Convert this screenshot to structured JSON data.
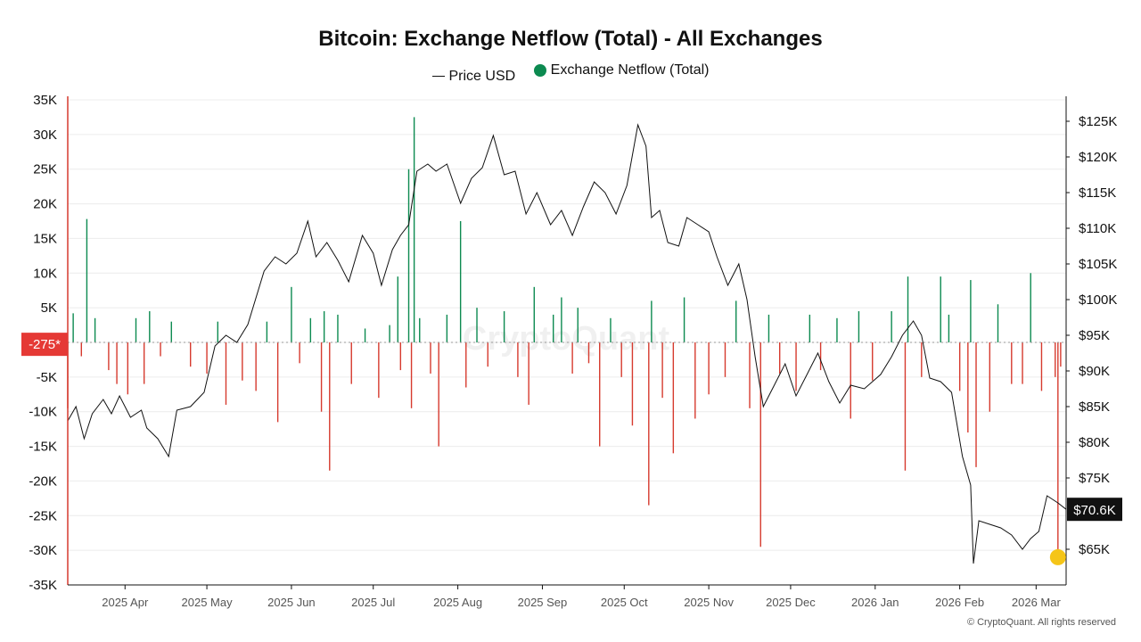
{
  "chart_data": {
    "type": "bar+line",
    "title": "Bitcoin: Exchange Netflow (Total) - All Exchanges",
    "legend": [
      {
        "name": "Price USD",
        "kind": "line",
        "color": "#111111"
      },
      {
        "name": "Exchange Netflow (Total)",
        "kind": "dot",
        "color": "#0c8a50"
      }
    ],
    "colors": {
      "inflow": "#0c8a50",
      "outflow": "#d63a2e",
      "price": "#111111",
      "marker": "#f5c518",
      "last_label_bg": "#e53935"
    },
    "left_axis": {
      "ylim": [
        -35000,
        35000
      ],
      "ticks": [
        35000,
        30000,
        25000,
        20000,
        15000,
        10000,
        5000,
        0,
        -5000,
        -10000,
        -15000,
        -20000,
        -25000,
        -30000,
        -35000
      ],
      "tick_labels": [
        "35K",
        "30K",
        "25K",
        "20K",
        "15K",
        "10K",
        "5K",
        "",
        "-5K",
        "-10K",
        "-15K",
        "-20K",
        "-25K",
        "-30K",
        "-35K"
      ]
    },
    "right_axis": {
      "ylim": [
        60000,
        128000
      ],
      "ticks": [
        125000,
        120000,
        115000,
        110000,
        105000,
        100000,
        95000,
        90000,
        85000,
        80000,
        75000,
        65000
      ],
      "tick_labels": [
        "$125K",
        "$120K",
        "$115K",
        "$110K",
        "$105K",
        "$100K",
        "$95K",
        "$90K",
        "$85K",
        "$80K",
        "$75K",
        "$65K"
      ]
    },
    "x_axis": {
      "start": "2025-03-11",
      "end": "2026-03-12",
      "ticks": [
        "2025-04-01",
        "2025-05-01",
        "2025-06-01",
        "2025-07-01",
        "2025-08-01",
        "2025-09-01",
        "2025-10-01",
        "2025-11-01",
        "2025-12-01",
        "2026-01-01",
        "2026-02-01",
        "2026-03-01"
      ],
      "tick_labels": [
        "2025 Apr",
        "2025 May",
        "2025 Jun",
        "2025 Jul",
        "2025 Aug",
        "2025 Sep",
        "2025 Oct",
        "2025 Nov",
        "2025 Dec",
        "2026 Jan",
        "2026 Feb",
        "2026 Mar"
      ]
    },
    "netflow_series": [
      {
        "date": "2025-03-11",
        "value": -9500
      },
      {
        "date": "2025-03-13",
        "value": 4200
      },
      {
        "date": "2025-03-16",
        "value": -2000
      },
      {
        "date": "2025-03-18",
        "value": 17800
      },
      {
        "date": "2025-03-21",
        "value": 3500
      },
      {
        "date": "2025-03-26",
        "value": -4000
      },
      {
        "date": "2025-03-29",
        "value": -6000
      },
      {
        "date": "2025-04-02",
        "value": -7500
      },
      {
        "date": "2025-04-05",
        "value": 3500
      },
      {
        "date": "2025-04-08",
        "value": -6000
      },
      {
        "date": "2025-04-10",
        "value": 4500
      },
      {
        "date": "2025-04-14",
        "value": -2000
      },
      {
        "date": "2025-04-18",
        "value": 3000
      },
      {
        "date": "2025-04-25",
        "value": -3500
      },
      {
        "date": "2025-05-01",
        "value": -4500
      },
      {
        "date": "2025-05-05",
        "value": 3000
      },
      {
        "date": "2025-05-08",
        "value": -9000
      },
      {
        "date": "2025-05-14",
        "value": -5500
      },
      {
        "date": "2025-05-19",
        "value": -7000
      },
      {
        "date": "2025-05-23",
        "value": 3000
      },
      {
        "date": "2025-05-27",
        "value": -11500
      },
      {
        "date": "2025-06-01",
        "value": 8000
      },
      {
        "date": "2025-06-04",
        "value": -3000
      },
      {
        "date": "2025-06-08",
        "value": 3500
      },
      {
        "date": "2025-06-12",
        "value": -10000
      },
      {
        "date": "2025-06-13",
        "value": 4500
      },
      {
        "date": "2025-06-15",
        "value": -18500
      },
      {
        "date": "2025-06-18",
        "value": 4000
      },
      {
        "date": "2025-06-23",
        "value": -6000
      },
      {
        "date": "2025-06-28",
        "value": 2000
      },
      {
        "date": "2025-07-03",
        "value": -8000
      },
      {
        "date": "2025-07-07",
        "value": 2500
      },
      {
        "date": "2025-07-10",
        "value": 9500
      },
      {
        "date": "2025-07-11",
        "value": -4000
      },
      {
        "date": "2025-07-14",
        "value": 25000
      },
      {
        "date": "2025-07-15",
        "value": -9500
      },
      {
        "date": "2025-07-16",
        "value": 32500
      },
      {
        "date": "2025-07-18",
        "value": 3500
      },
      {
        "date": "2025-07-22",
        "value": -4500
      },
      {
        "date": "2025-07-25",
        "value": -15000
      },
      {
        "date": "2025-07-28",
        "value": 4000
      },
      {
        "date": "2025-08-02",
        "value": 17500
      },
      {
        "date": "2025-08-04",
        "value": -6500
      },
      {
        "date": "2025-08-08",
        "value": 5000
      },
      {
        "date": "2025-08-12",
        "value": -3500
      },
      {
        "date": "2025-08-18",
        "value": 4500
      },
      {
        "date": "2025-08-23",
        "value": -5000
      },
      {
        "date": "2025-08-27",
        "value": -9000
      },
      {
        "date": "2025-08-29",
        "value": 8000
      },
      {
        "date": "2025-09-05",
        "value": 4000
      },
      {
        "date": "2025-09-08",
        "value": 6500
      },
      {
        "date": "2025-09-12",
        "value": -4500
      },
      {
        "date": "2025-09-14",
        "value": 5000
      },
      {
        "date": "2025-09-18",
        "value": -3000
      },
      {
        "date": "2025-09-22",
        "value": -15000
      },
      {
        "date": "2025-09-26",
        "value": 3500
      },
      {
        "date": "2025-09-30",
        "value": -5000
      },
      {
        "date": "2025-10-04",
        "value": -12000
      },
      {
        "date": "2025-10-10",
        "value": -23500
      },
      {
        "date": "2025-10-11",
        "value": 6000
      },
      {
        "date": "2025-10-15",
        "value": -8000
      },
      {
        "date": "2025-10-19",
        "value": -16000
      },
      {
        "date": "2025-10-23",
        "value": 6500
      },
      {
        "date": "2025-10-27",
        "value": -11000
      },
      {
        "date": "2025-11-01",
        "value": -7500
      },
      {
        "date": "2025-11-07",
        "value": -5000
      },
      {
        "date": "2025-11-11",
        "value": 6000
      },
      {
        "date": "2025-11-16",
        "value": -9500
      },
      {
        "date": "2025-11-20",
        "value": -29500
      },
      {
        "date": "2025-11-23",
        "value": 4000
      },
      {
        "date": "2025-11-27",
        "value": -4500
      },
      {
        "date": "2025-12-03",
        "value": -7000
      },
      {
        "date": "2025-12-08",
        "value": 4000
      },
      {
        "date": "2025-12-12",
        "value": -4000
      },
      {
        "date": "2025-12-18",
        "value": 3500
      },
      {
        "date": "2025-12-23",
        "value": -11000
      },
      {
        "date": "2025-12-26",
        "value": 4500
      },
      {
        "date": "2025-12-31",
        "value": -5500
      },
      {
        "date": "2026-01-07",
        "value": 4500
      },
      {
        "date": "2026-01-12",
        "value": -18500
      },
      {
        "date": "2026-01-13",
        "value": 9500
      },
      {
        "date": "2026-01-18",
        "value": -5000
      },
      {
        "date": "2026-01-25",
        "value": 9500
      },
      {
        "date": "2026-01-28",
        "value": 4000
      },
      {
        "date": "2026-02-01",
        "value": -7000
      },
      {
        "date": "2026-02-04",
        "value": -13000
      },
      {
        "date": "2026-02-05",
        "value": 9000
      },
      {
        "date": "2026-02-07",
        "value": -18000
      },
      {
        "date": "2026-02-12",
        "value": -10000
      },
      {
        "date": "2026-02-15",
        "value": 5500
      },
      {
        "date": "2026-02-20",
        "value": -6000
      },
      {
        "date": "2026-02-24",
        "value": -6000
      },
      {
        "date": "2026-02-27",
        "value": 10000
      },
      {
        "date": "2026-03-03",
        "value": -7000
      },
      {
        "date": "2026-03-08",
        "value": -5000
      },
      {
        "date": "2026-03-09",
        "value": -31000
      },
      {
        "date": "2026-03-10",
        "value": -3500
      }
    ],
    "price_series": [
      {
        "date": "2025-03-11",
        "value": 83000
      },
      {
        "date": "2025-03-14",
        "value": 85000
      },
      {
        "date": "2025-03-17",
        "value": 80500
      },
      {
        "date": "2025-03-20",
        "value": 84000
      },
      {
        "date": "2025-03-24",
        "value": 86000
      },
      {
        "date": "2025-03-27",
        "value": 84000
      },
      {
        "date": "2025-03-30",
        "value": 86500
      },
      {
        "date": "2025-04-03",
        "value": 83500
      },
      {
        "date": "2025-04-07",
        "value": 84500
      },
      {
        "date": "2025-04-09",
        "value": 82000
      },
      {
        "date": "2025-04-13",
        "value": 80500
      },
      {
        "date": "2025-04-17",
        "value": 78000
      },
      {
        "date": "2025-04-20",
        "value": 84500
      },
      {
        "date": "2025-04-25",
        "value": 85000
      },
      {
        "date": "2025-04-30",
        "value": 87000
      },
      {
        "date": "2025-05-04",
        "value": 93500
      },
      {
        "date": "2025-05-08",
        "value": 95000
      },
      {
        "date": "2025-05-12",
        "value": 94000
      },
      {
        "date": "2025-05-16",
        "value": 96500
      },
      {
        "date": "2025-05-22",
        "value": 104000
      },
      {
        "date": "2025-05-26",
        "value": 106000
      },
      {
        "date": "2025-05-30",
        "value": 105000
      },
      {
        "date": "2025-06-03",
        "value": 106500
      },
      {
        "date": "2025-06-07",
        "value": 111000
      },
      {
        "date": "2025-06-10",
        "value": 106000
      },
      {
        "date": "2025-06-14",
        "value": 108000
      },
      {
        "date": "2025-06-18",
        "value": 105500
      },
      {
        "date": "2025-06-22",
        "value": 102500
      },
      {
        "date": "2025-06-27",
        "value": 109000
      },
      {
        "date": "2025-07-01",
        "value": 106500
      },
      {
        "date": "2025-07-04",
        "value": 102000
      },
      {
        "date": "2025-07-08",
        "value": 107000
      },
      {
        "date": "2025-07-11",
        "value": 109000
      },
      {
        "date": "2025-07-14",
        "value": 110500
      },
      {
        "date": "2025-07-17",
        "value": 118000
      },
      {
        "date": "2025-07-21",
        "value": 119000
      },
      {
        "date": "2025-07-24",
        "value": 118000
      },
      {
        "date": "2025-07-28",
        "value": 119000
      },
      {
        "date": "2025-08-02",
        "value": 113500
      },
      {
        "date": "2025-08-06",
        "value": 117000
      },
      {
        "date": "2025-08-10",
        "value": 118500
      },
      {
        "date": "2025-08-14",
        "value": 123000
      },
      {
        "date": "2025-08-18",
        "value": 117500
      },
      {
        "date": "2025-08-22",
        "value": 118000
      },
      {
        "date": "2025-08-26",
        "value": 112000
      },
      {
        "date": "2025-08-30",
        "value": 115000
      },
      {
        "date": "2025-09-04",
        "value": 110500
      },
      {
        "date": "2025-09-08",
        "value": 112500
      },
      {
        "date": "2025-09-12",
        "value": 109000
      },
      {
        "date": "2025-09-16",
        "value": 113000
      },
      {
        "date": "2025-09-20",
        "value": 116500
      },
      {
        "date": "2025-09-24",
        "value": 115000
      },
      {
        "date": "2025-09-28",
        "value": 112000
      },
      {
        "date": "2025-10-02",
        "value": 116000
      },
      {
        "date": "2025-10-06",
        "value": 124500
      },
      {
        "date": "2025-10-09",
        "value": 121500
      },
      {
        "date": "2025-10-11",
        "value": 111500
      },
      {
        "date": "2025-10-14",
        "value": 112500
      },
      {
        "date": "2025-10-17",
        "value": 108000
      },
      {
        "date": "2025-10-21",
        "value": 107500
      },
      {
        "date": "2025-10-24",
        "value": 111500
      },
      {
        "date": "2025-10-28",
        "value": 110500
      },
      {
        "date": "2025-11-01",
        "value": 109500
      },
      {
        "date": "2025-11-04",
        "value": 106000
      },
      {
        "date": "2025-11-08",
        "value": 102000
      },
      {
        "date": "2025-11-12",
        "value": 105000
      },
      {
        "date": "2025-11-15",
        "value": 100000
      },
      {
        "date": "2025-11-18",
        "value": 92000
      },
      {
        "date": "2025-11-21",
        "value": 85000
      },
      {
        "date": "2025-11-25",
        "value": 88000
      },
      {
        "date": "2025-11-29",
        "value": 91000
      },
      {
        "date": "2025-12-03",
        "value": 86500
      },
      {
        "date": "2025-12-07",
        "value": 89500
      },
      {
        "date": "2025-12-11",
        "value": 92500
      },
      {
        "date": "2025-12-15",
        "value": 88500
      },
      {
        "date": "2025-12-19",
        "value": 85500
      },
      {
        "date": "2025-12-23",
        "value": 88000
      },
      {
        "date": "2025-12-28",
        "value": 87500
      },
      {
        "date": "2026-01-03",
        "value": 89500
      },
      {
        "date": "2026-01-07",
        "value": 92000
      },
      {
        "date": "2026-01-11",
        "value": 95000
      },
      {
        "date": "2026-01-15",
        "value": 97000
      },
      {
        "date": "2026-01-18",
        "value": 95000
      },
      {
        "date": "2026-01-21",
        "value": 89000
      },
      {
        "date": "2026-01-25",
        "value": 88500
      },
      {
        "date": "2026-01-29",
        "value": 87000
      },
      {
        "date": "2026-02-02",
        "value": 78000
      },
      {
        "date": "2026-02-05",
        "value": 74000
      },
      {
        "date": "2026-02-06",
        "value": 63000
      },
      {
        "date": "2026-02-08",
        "value": 69000
      },
      {
        "date": "2026-02-12",
        "value": 68500
      },
      {
        "date": "2026-02-16",
        "value": 68000
      },
      {
        "date": "2026-02-20",
        "value": 67000
      },
      {
        "date": "2026-02-24",
        "value": 65000
      },
      {
        "date": "2026-02-27",
        "value": 66500
      },
      {
        "date": "2026-03-02",
        "value": 67500
      },
      {
        "date": "2026-03-05",
        "value": 72500
      },
      {
        "date": "2026-03-09",
        "value": 71500
      },
      {
        "date": "2026-03-12",
        "value": 70600
      }
    ],
    "last_values": {
      "netflow": "-275*",
      "price": "$70.6K"
    }
  },
  "watermark": "CryptoQuant",
  "copyright": "© CryptoQuant. All rights reserved"
}
